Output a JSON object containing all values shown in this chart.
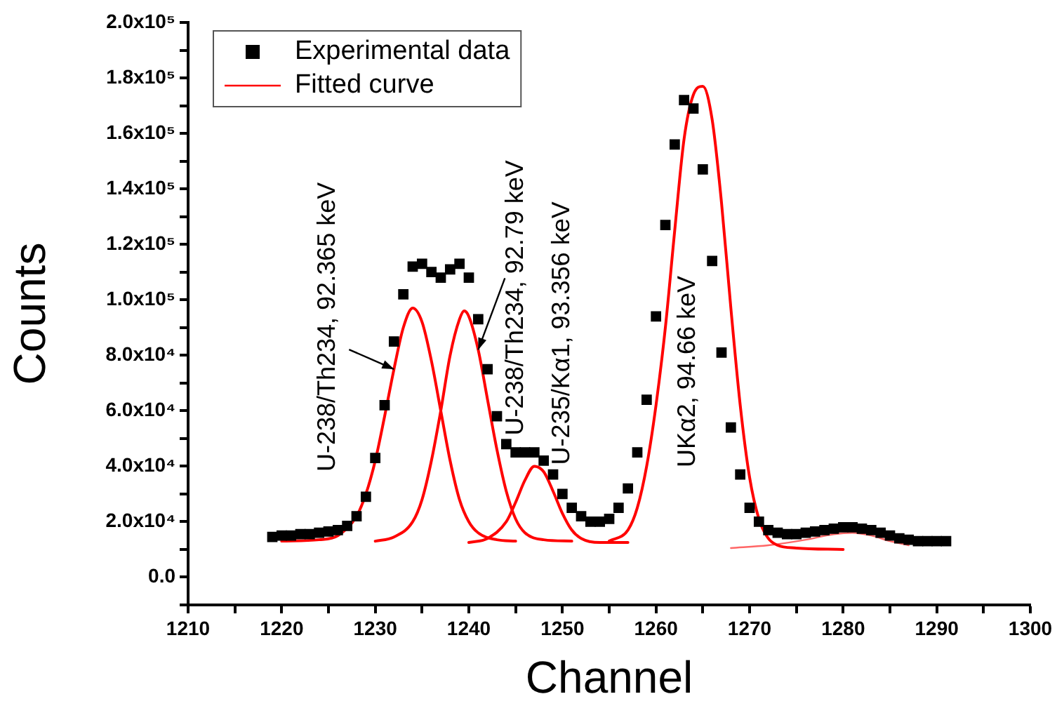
{
  "chart_data": {
    "type": "scatter",
    "xlabel": "Channel",
    "ylabel": "Counts",
    "xlim": [
      1210,
      1300
    ],
    "ylim": [
      -10000,
      200000
    ],
    "xticks": [
      1210,
      {
        "value": 1215,
        "label": null
      },
      1220,
      {
        "value": 1225,
        "label": null
      },
      1230,
      {
        "value": 1235,
        "label": null
      },
      1240,
      {
        "value": 1245,
        "label": null
      },
      1250,
      {
        "value": 1255,
        "label": null
      },
      1260,
      {
        "value": 1265,
        "label": null
      },
      1270,
      {
        "value": 1275,
        "label": null
      },
      1280,
      {
        "value": 1285,
        "label": null
      },
      1290,
      {
        "value": 1295,
        "label": null
      },
      1300
    ],
    "yticks": [
      {
        "value": -10000,
        "label": null
      },
      {
        "value": 0,
        "label": "0.0"
      },
      {
        "value": 10000,
        "label": null
      },
      {
        "value": 20000,
        "label": "2.0x10⁴"
      },
      {
        "value": 30000,
        "label": null
      },
      {
        "value": 40000,
        "label": "4.0x10⁴"
      },
      {
        "value": 50000,
        "label": null
      },
      {
        "value": 60000,
        "label": "6.0x10⁴"
      },
      {
        "value": 70000,
        "label": null
      },
      {
        "value": 80000,
        "label": "8.0x10⁴"
      },
      {
        "value": 90000,
        "label": null
      },
      {
        "value": 100000,
        "label": "1.0x10⁵"
      },
      {
        "value": 110000,
        "label": null
      },
      {
        "value": 120000,
        "label": "1.2x10⁵"
      },
      {
        "value": 130000,
        "label": null
      },
      {
        "value": 140000,
        "label": "1.4x10⁵"
      },
      {
        "value": 150000,
        "label": null
      },
      {
        "value": 160000,
        "label": "1.6x10⁵"
      },
      {
        "value": 170000,
        "label": null
      },
      {
        "value": 180000,
        "label": "1.8x10⁵"
      },
      {
        "value": 190000,
        "label": null
      },
      {
        "value": 200000,
        "label": "2.0x10⁵"
      }
    ],
    "grid": false,
    "legend": "top left",
    "series": [
      {
        "name": "Experimental data",
        "type": "scatter",
        "marker": "square",
        "color": "#000000",
        "x": [
          1219,
          1220,
          1221,
          1222,
          1223,
          1224,
          1225,
          1226,
          1227,
          1228,
          1229,
          1230,
          1231,
          1232,
          1233,
          1234,
          1235,
          1236,
          1237,
          1238,
          1239,
          1240,
          1241,
          1242,
          1243,
          1244,
          1245,
          1246,
          1247,
          1248,
          1249,
          1250,
          1251,
          1252,
          1253,
          1254,
          1255,
          1256,
          1257,
          1258,
          1259,
          1260,
          1261,
          1262,
          1263,
          1264,
          1265,
          1266,
          1267,
          1268,
          1269,
          1270,
          1271,
          1272,
          1273,
          1274,
          1275,
          1276,
          1277,
          1278,
          1279,
          1280,
          1281,
          1282,
          1283,
          1284,
          1285,
          1286,
          1287,
          1288,
          1289,
          1290,
          1291
        ],
        "values": [
          14500,
          15000,
          15000,
          15500,
          15500,
          16000,
          16500,
          17000,
          18500,
          22000,
          29000,
          43000,
          62000,
          85000,
          102000,
          112000,
          113000,
          110000,
          108000,
          111000,
          113000,
          108000,
          93000,
          75000,
          58000,
          48000,
          45000,
          45000,
          45000,
          42000,
          37000,
          30000,
          25000,
          22000,
          20000,
          20000,
          21000,
          25000,
          32000,
          45000,
          64000,
          94000,
          127000,
          156000,
          172000,
          169000,
          147000,
          114000,
          81000,
          54000,
          37000,
          25000,
          20000,
          17000,
          16000,
          15500,
          15500,
          16000,
          16500,
          17000,
          17500,
          18000,
          18000,
          17500,
          17000,
          16000,
          15000,
          14000,
          13500,
          13000,
          13000,
          13000,
          13000
        ]
      },
      {
        "name": "Fitted curve",
        "type": "line",
        "marker": "none",
        "color": "#ff0000",
        "x": [
          1220,
          1224,
          1226,
          1228,
          1229,
          1230,
          1231,
          1232,
          1233,
          1234,
          1235,
          1236,
          1237,
          1238,
          1239,
          1240,
          1241,
          1243,
          1245
        ],
        "values": [
          13000,
          13500,
          15000,
          22000,
          30000,
          42000,
          58000,
          75000,
          90000,
          97000,
          92000,
          78000,
          60000,
          42000,
          28000,
          20000,
          16000,
          13500,
          13000
        ]
      },
      {
        "type": "line",
        "marker": "none",
        "color": "#ff0000",
        "x": [
          1230,
          1232,
          1234,
          1235,
          1236,
          1237,
          1238,
          1239,
          1239.5,
          1240,
          1241,
          1242,
          1243,
          1244,
          1245,
          1246,
          1248,
          1251
        ],
        "values": [
          13000,
          14500,
          20000,
          28000,
          42000,
          60000,
          80000,
          93000,
          96000,
          94000,
          82000,
          64000,
          46000,
          31000,
          21000,
          16000,
          13500,
          13000
        ]
      },
      {
        "type": "line",
        "marker": "none",
        "color": "#ff0000",
        "x": [
          1240,
          1242,
          1244,
          1245,
          1246,
          1247,
          1248,
          1249,
          1250,
          1251,
          1252,
          1254,
          1257
        ],
        "values": [
          12500,
          14000,
          20000,
          27000,
          35000,
          40000,
          38000,
          31000,
          23000,
          17000,
          14000,
          12500,
          12500
        ]
      },
      {
        "type": "line",
        "marker": "none",
        "color": "#ff0000",
        "x": [
          1255,
          1257,
          1258,
          1259,
          1260,
          1261,
          1262,
          1263,
          1264,
          1265,
          1266,
          1267,
          1268,
          1269,
          1270,
          1271,
          1272,
          1273,
          1275,
          1280
        ],
        "values": [
          13000,
          17000,
          25000,
          40000,
          62000,
          90000,
          125000,
          158000,
          174000,
          177000,
          165000,
          135000,
          97000,
          62000,
          36000,
          21000,
          14000,
          11500,
          10500,
          10000
        ]
      },
      {
        "type": "line",
        "marker": "none",
        "color": "#ff6666",
        "x": [
          1268,
          1272,
          1276,
          1279,
          1281,
          1283,
          1285,
          1287
        ],
        "values": [
          10500,
          11500,
          13500,
          15500,
          16000,
          15000,
          13000,
          11500
        ]
      }
    ],
    "annotations": [
      {
        "text": "U-238/Th234, 92.365 keV",
        "x": 1232,
        "y": 75000
      },
      {
        "text": "U-238/Th234, 92.79 keV",
        "x": 1241,
        "y": 82000
      },
      {
        "text": "U-235/Kα1, 93.356 keV",
        "x": 1247,
        "y": 40000
      },
      "UKα2, 94.66 keV"
    ]
  }
}
